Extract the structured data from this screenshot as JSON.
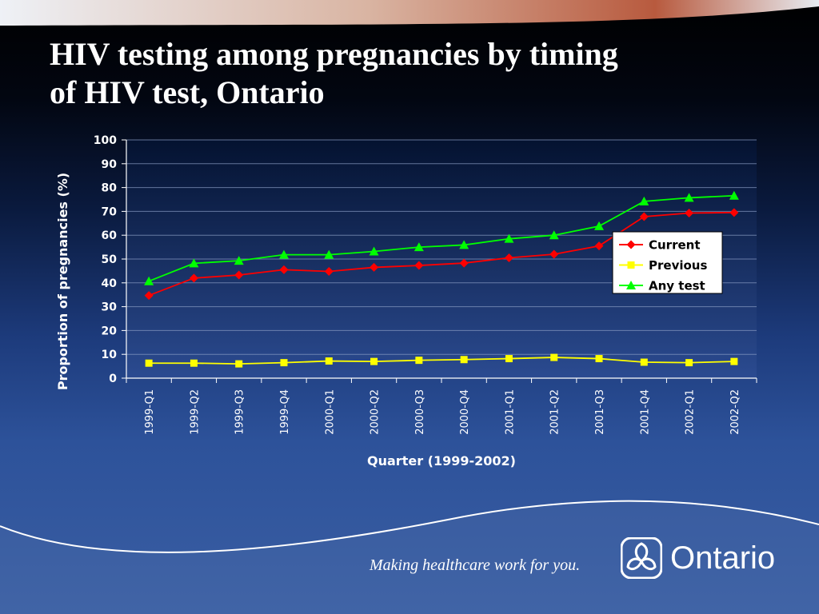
{
  "slide": {
    "title_line1": "HIV testing among pregnancies by timing",
    "title_line2": "of HIV test, Ontario",
    "tagline": "Making healthcare work for you.",
    "logo_text": "Ontario"
  },
  "colors": {
    "current": "#ff0000",
    "previous": "#ffff00",
    "any_test": "#00ff00",
    "plot_bg_top": "#041230",
    "plot_bg_bottom": "#2b4b91"
  },
  "chart_data": {
    "type": "line",
    "title": "",
    "xlabel": "Quarter (1999-2002)",
    "ylabel": "Proportion of pregnancies (%)",
    "ylim": [
      0,
      100
    ],
    "yticks": [
      "0",
      "10",
      "20",
      "30",
      "40",
      "50",
      "60",
      "70",
      "80",
      "90",
      "100"
    ],
    "categories": [
      "1999-Q1",
      "1999-Q2",
      "1999-Q3",
      "1999-Q4",
      "2000-Q1",
      "2000-Q2",
      "2000-Q3",
      "2000-Q4",
      "2001-Q1",
      "2001-Q2",
      "2001-Q3",
      "2001-Q4",
      "2002-Q1",
      "2002-Q2"
    ],
    "grid": true,
    "legend_position": "right",
    "series": [
      {
        "name": "Current",
        "marker": "diamond",
        "values": [
          34.7,
          42.0,
          43.3,
          45.5,
          44.8,
          46.5,
          47.3,
          48.3,
          50.5,
          52.0,
          55.5,
          67.8,
          69.3,
          69.5
        ]
      },
      {
        "name": "Previous",
        "marker": "square",
        "values": [
          6.3,
          6.3,
          6.0,
          6.5,
          7.2,
          7.0,
          7.5,
          7.8,
          8.2,
          8.7,
          8.2,
          6.7,
          6.5,
          7.0
        ]
      },
      {
        "name": "Any test",
        "marker": "triangle",
        "values": [
          40.7,
          48.2,
          49.3,
          51.8,
          51.8,
          53.2,
          55.0,
          55.9,
          58.5,
          60.0,
          63.8,
          74.2,
          75.7,
          76.6
        ]
      }
    ]
  }
}
